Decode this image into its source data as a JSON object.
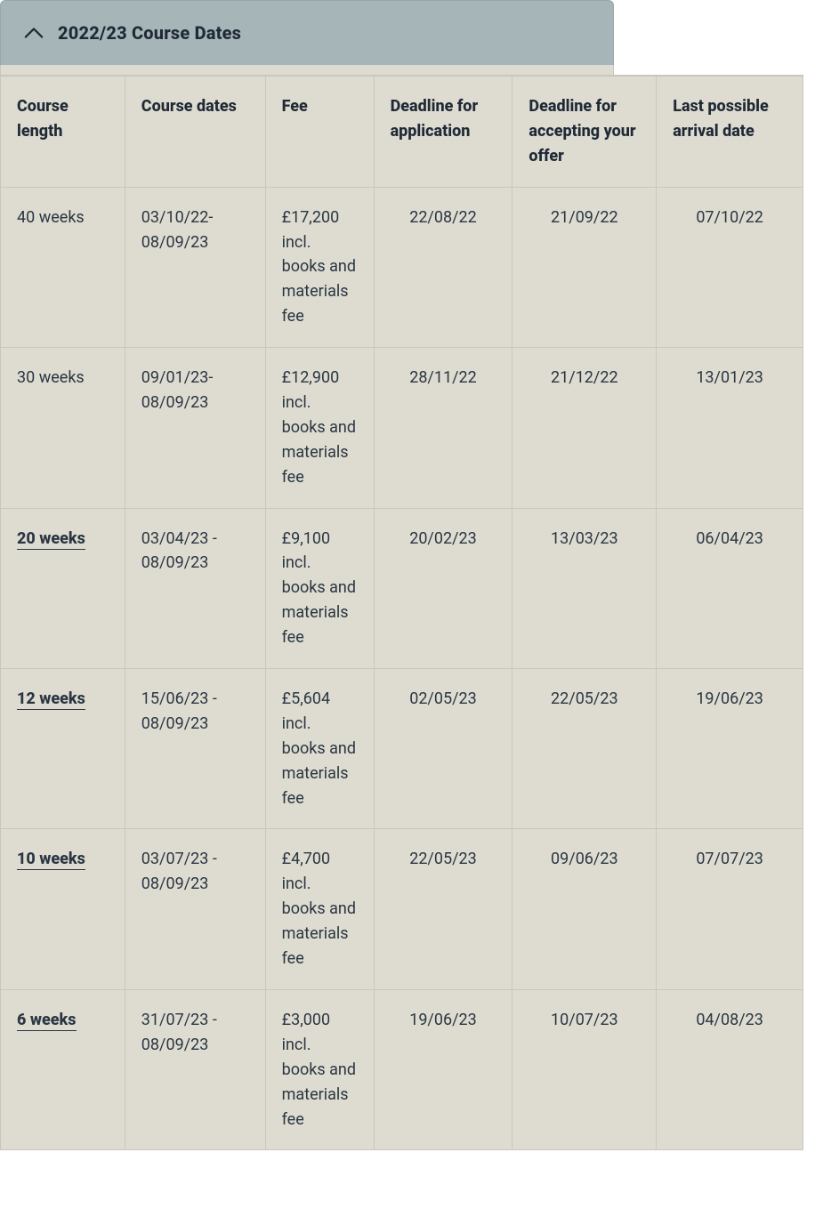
{
  "colors": {
    "page_bg": "#ffffff",
    "panel_bg": "#dedcd1",
    "header_bg": "#a6b5b7",
    "border": "#c9c7bc",
    "text": "#2a3642",
    "heading_text": "#1f2a36"
  },
  "accordion": {
    "title": "2022/23 Course Dates",
    "expanded": true
  },
  "table": {
    "columns": [
      {
        "key": "course_length",
        "label": "Course length",
        "align": "left"
      },
      {
        "key": "course_dates",
        "label": "Course dates",
        "align": "left"
      },
      {
        "key": "fee",
        "label": "Fee",
        "align": "left"
      },
      {
        "key": "deadline_app",
        "label": "Deadline for application",
        "align": "center"
      },
      {
        "key": "deadline_offer",
        "label": "Deadline for accepting your offer",
        "align": "center"
      },
      {
        "key": "last_arrival",
        "label": "Last possible arrival date",
        "align": "center"
      }
    ],
    "rows": [
      {
        "course_length": "40 weeks",
        "course_length_link": false,
        "course_dates": "03/10/22-08/09/23",
        "fee": "£17,200 incl. books and materials fee",
        "deadline_app": "22/08/22",
        "deadline_offer": "21/09/22",
        "last_arrival": "07/10/22"
      },
      {
        "course_length": "30 weeks",
        "course_length_link": false,
        "course_dates": "09/01/23-08/09/23",
        "fee": "£12,900 incl. books and materials fee",
        "deadline_app": "28/11/22",
        "deadline_offer": "21/12/22",
        "last_arrival": "13/01/23"
      },
      {
        "course_length": "20 weeks",
        "course_length_link": true,
        "course_dates": "03/04/23 - 08/09/23",
        "fee": "£9,100 incl. books and materials fee",
        "deadline_app": "20/02/23",
        "deadline_offer": "13/03/23",
        "last_arrival": "06/04/23"
      },
      {
        "course_length": "12 weeks",
        "course_length_link": true,
        "course_dates": "15/06/23 - 08/09/23",
        "fee": "£5,604 incl. books and materials fee",
        "deadline_app": "02/05/23",
        "deadline_offer": "22/05/23",
        "last_arrival": "19/06/23"
      },
      {
        "course_length": "10 weeks",
        "course_length_link": true,
        "course_dates": "03/07/23 - 08/09/23",
        "fee": "£4,700 incl. books and materials fee",
        "deadline_app": "22/05/23",
        "deadline_offer": "09/06/23",
        "last_arrival": "07/07/23"
      },
      {
        "course_length": "6 weeks",
        "course_length_link": true,
        "course_dates": "31/07/23 - 08/09/23",
        "fee": "£3,000 incl. books and materials fee",
        "deadline_app": "19/06/23",
        "deadline_offer": "10/07/23",
        "last_arrival": "04/08/23"
      }
    ]
  }
}
